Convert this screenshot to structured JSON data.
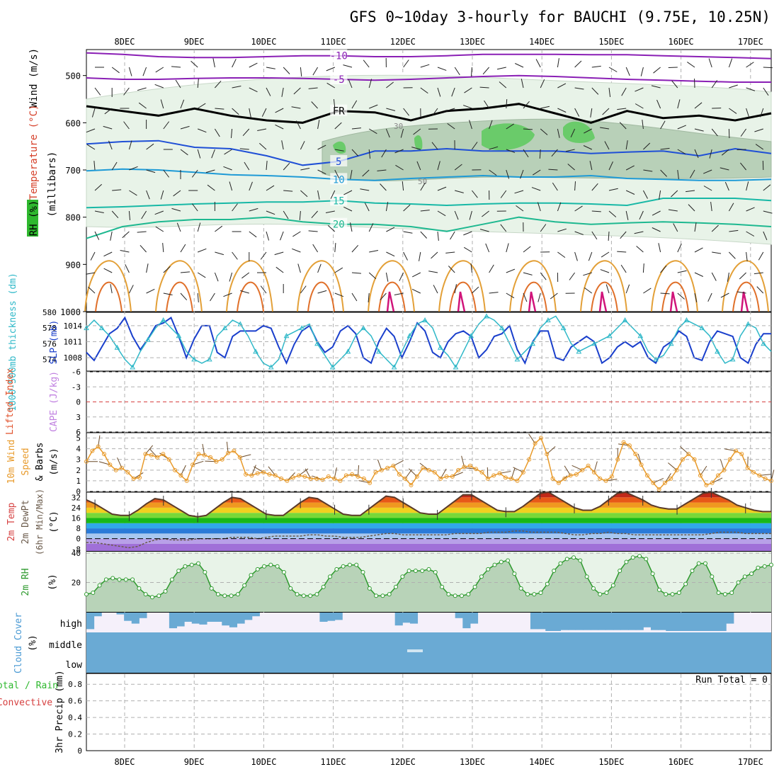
{
  "title": "GFS 0~10day 3-hourly for BAUCHI (9.75E, 10.25N)",
  "colors": {
    "purple": "#8a1fb5",
    "blue": "#1f4fd6",
    "cyan": "#1e9ad6",
    "teal": "#18b8a6",
    "green": "#1eb890",
    "orange": "#e3a038",
    "darkorange": "#e0702a",
    "magenta": "#d0147a",
    "rhLight": "#e8f3e8",
    "rhMid": "#b8d0b8",
    "rhDark": "#98b098",
    "rhBright": "#6acb6a",
    "slp": "#1a3fcc",
    "thick": "#2fb8c8",
    "wind10": "#e89a2a",
    "cloud": "#6aaad4",
    "cloudBg": "#f5f0fa",
    "grid": "#b0b0b0",
    "rh2m": "#2e9a2e",
    "rhFill": "#a8c8a8"
  },
  "chart_data": [
    {
      "panel": "upper_air",
      "type": "contour",
      "ylabel_parts": [
        "Wind (m/s)",
        "Temperature (°C)",
        "RH (%)",
        "(millibars)"
      ],
      "yticks": [
        500,
        600,
        700,
        800,
        900,
        1000
      ],
      "ylim": [
        445,
        1000
      ],
      "x_ticks": [
        "8DEC",
        "9DEC",
        "10DEC",
        "11DEC",
        "12DEC",
        "13DEC",
        "14DEC",
        "15DEC",
        "16DEC",
        "17DEC"
      ],
      "isotherm_labels": [
        "-10",
        "-5",
        "FR",
        "5",
        "10",
        "15",
        "20"
      ],
      "rh_labels": [
        "30",
        "50"
      ],
      "isotherms": [
        {
          "label": "-10",
          "color": "purple",
          "levels": [
            452,
            455,
            460,
            462,
            462,
            460,
            458,
            458,
            460,
            460,
            458,
            455,
            455,
            455,
            456,
            456,
            458,
            460,
            462,
            464
          ]
        },
        {
          "label": "-5",
          "color": "purple",
          "levels": [
            505,
            508,
            508,
            506,
            505,
            505,
            506,
            508,
            510,
            508,
            505,
            502,
            500,
            502,
            505,
            508,
            510,
            512,
            514,
            514
          ]
        },
        {
          "label": "FR",
          "color": "black",
          "levels": [
            565,
            575,
            585,
            570,
            585,
            595,
            600,
            575,
            578,
            595,
            575,
            570,
            560,
            580,
            600,
            575,
            590,
            585,
            595,
            580
          ]
        },
        {
          "label": "5",
          "color": "blue",
          "levels": [
            645,
            640,
            638,
            652,
            655,
            670,
            690,
            682,
            660,
            660,
            655,
            660,
            660,
            660,
            665,
            662,
            660,
            670,
            655,
            665
          ]
        },
        {
          "label": "10",
          "color": "cyan",
          "levels": [
            702,
            698,
            700,
            705,
            710,
            712,
            715,
            720,
            722,
            718,
            715,
            712,
            715,
            715,
            712,
            718,
            720,
            722,
            722,
            720
          ]
        },
        {
          "label": "15",
          "color": "teal",
          "levels": [
            780,
            778,
            775,
            772,
            770,
            768,
            768,
            765,
            770,
            772,
            775,
            772,
            770,
            770,
            772,
            775,
            760,
            760,
            760,
            765
          ]
        },
        {
          "label": "20",
          "color": "green",
          "levels": [
            845,
            820,
            810,
            805,
            805,
            800,
            810,
            815,
            815,
            820,
            830,
            815,
            800,
            810,
            815,
            812,
            810,
            812,
            815,
            820
          ]
        }
      ]
    },
    {
      "panel": "slp_thickness",
      "type": "line",
      "left_label": "1000-500mb thickness (dm)",
      "right_label": "SLP (mb)",
      "left_ticks": [
        574,
        576,
        578,
        580
      ],
      "right_ticks": [
        1008,
        1011,
        1014
      ],
      "ylim_left": [
        572.5,
        580
      ],
      "ylim_right": [
        1005.5,
        1016.5
      ],
      "slp": [
        1009,
        1007.5,
        1010,
        1012.5,
        1013.5,
        1015.5,
        1012,
        1009.5,
        1011.5,
        1014,
        1014.5,
        1015.5,
        1012,
        1008,
        1011.5,
        1014,
        1014,
        1009,
        1008,
        1012,
        1013,
        1013,
        1013,
        1014,
        1013.5,
        1010,
        1007,
        1010.5,
        1013,
        1014,
        1011,
        1009,
        1010,
        1013,
        1014,
        1012.5,
        1008,
        1007,
        1011,
        1013.5,
        1012,
        1008,
        1011,
        1014.5,
        1013,
        1009,
        1008,
        1011,
        1012.5,
        1013,
        1012,
        1008,
        1009.5,
        1012,
        1012.5,
        1014,
        1009.5,
        1007,
        1011,
        1013,
        1013,
        1008,
        1007.5,
        1010,
        1011,
        1012,
        1011,
        1007,
        1008,
        1010,
        1011,
        1010,
        1011,
        1008,
        1007,
        1010,
        1011,
        1013,
        1012,
        1008,
        1007.5,
        1011,
        1013,
        1012.5,
        1012,
        1008,
        1007,
        1010.5,
        1012.5,
        1012.5
      ],
      "thickness": [
        578,
        579,
        578,
        577,
        575.5,
        574,
        573,
        575,
        576.5,
        578,
        579,
        578,
        577,
        575,
        574,
        573.5,
        574,
        577,
        578,
        579,
        578.5,
        577,
        575,
        573.5,
        573,
        574,
        577,
        577.5,
        578,
        578.5,
        576,
        574.5,
        573,
        574,
        575,
        577,
        578,
        577,
        575,
        574,
        573,
        575,
        577,
        578.5,
        579,
        578,
        575.5,
        574.5,
        573,
        575,
        577,
        578.5,
        579.5,
        579,
        578,
        576,
        574,
        575,
        576,
        578,
        579,
        579.5,
        578,
        576,
        575,
        575.5,
        576,
        576.5,
        577,
        578,
        579,
        578,
        577,
        575,
        574,
        574.5,
        576,
        578,
        579,
        578.5,
        578,
        577,
        575,
        573.5,
        574,
        577,
        578.5,
        578,
        576,
        575
      ]
    },
    {
      "panel": "lifted_index_cape",
      "type": "line",
      "left_label": "Lifted Index",
      "right_label": "CAPE (J/kg)",
      "ticks": [
        "-6",
        "-3",
        "0",
        "3",
        "6"
      ],
      "ylim": [
        -6,
        6
      ]
    },
    {
      "panel": "wind10m",
      "type": "line",
      "ylabel_parts": [
        "10m Wind",
        "Speed",
        "& Barbs",
        "(m/s)"
      ],
      "yticks": [
        0,
        1,
        2,
        3,
        4,
        5
      ],
      "ylim": [
        0,
        5.5
      ],
      "speed": [
        2.8,
        3.8,
        4.2,
        3.5,
        2.5,
        2.0,
        2.2,
        1.8,
        1.2,
        1.3,
        3.5,
        3.4,
        3.2,
        3.5,
        3.0,
        2.0,
        1.5,
        1.0,
        2.5,
        3.5,
        3.4,
        3.2,
        2.8,
        3.0,
        3.6,
        3.8,
        3.2,
        1.6,
        1.5,
        1.7,
        1.8,
        1.6,
        1.5,
        1.2,
        1.0,
        1.3,
        1.5,
        1.4,
        1.2,
        1.2,
        1.1,
        1.4,
        1.2,
        1.0,
        1.5,
        1.6,
        1.4,
        1.2,
        0.8,
        1.8,
        2.0,
        2.2,
        2.4,
        1.6,
        1.2,
        0.6,
        1.4,
        2.2,
        2.0,
        1.8,
        1.2,
        1.4,
        1.4,
        2.0,
        2.3,
        2.4,
        2.1,
        1.8,
        1.2,
        1.5,
        1.7,
        1.3,
        1.2,
        1.0,
        1.8,
        3.0,
        4.5,
        5.0,
        3.5,
        1.2,
        0.8,
        1.2,
        1.5,
        1.6,
        2.0,
        2.4,
        1.8,
        1.2,
        1.0,
        1.4,
        3.0,
        4.6,
        4.3,
        3.5,
        2.5,
        1.5,
        0.8,
        0.2,
        0.8,
        1.2,
        2.0,
        3.0,
        3.5,
        3.0,
        1.5,
        0.6,
        0.8,
        1.5,
        2.0,
        3.0,
        3.8,
        3.5,
        2.2,
        1.8,
        1.5,
        1.2,
        1.0
      ]
    },
    {
      "panel": "temp2m",
      "type": "area",
      "ylabel_parts": [
        "2m Temp",
        "2m DewPt",
        "(6hr Min/Max)",
        "(°C)"
      ],
      "yticks": [
        -8,
        0,
        8,
        16,
        24,
        32
      ],
      "ylim": [
        -9.5,
        36
      ],
      "temp": [
        30,
        27,
        23,
        19,
        18,
        18,
        22,
        27,
        31,
        30,
        26,
        22,
        18,
        17,
        18,
        23,
        28,
        32,
        31,
        27,
        23,
        19,
        18,
        18,
        23,
        28,
        32,
        31,
        27,
        23,
        19,
        18,
        18,
        23,
        28,
        33,
        32,
        28,
        24,
        20,
        19,
        19,
        24,
        29,
        34,
        34,
        30,
        26,
        22,
        21,
        21,
        25,
        30,
        35,
        36,
        32,
        28,
        24,
        22,
        22,
        25,
        30,
        35,
        36,
        33,
        30,
        26,
        24,
        23,
        23,
        27,
        31,
        35,
        36,
        33,
        30,
        26,
        24,
        22,
        21,
        21
      ],
      "dewpt": [
        -3,
        -3,
        -4,
        -5,
        -6,
        -7,
        -6,
        -3,
        -1,
        0,
        -1,
        -1,
        -1,
        0,
        0,
        0,
        0,
        1,
        1,
        1,
        0,
        1,
        2,
        2,
        2,
        2,
        3,
        3,
        2,
        2,
        1,
        1,
        1,
        2,
        3,
        4,
        4,
        3,
        3,
        3,
        3,
        3,
        3,
        4,
        4,
        4,
        4,
        5,
        5,
        5,
        6,
        6,
        5,
        5,
        5,
        5,
        4,
        3,
        3,
        4,
        4,
        5,
        4,
        4,
        3,
        3,
        3,
        3,
        3,
        3,
        3,
        3,
        3,
        4,
        5,
        5,
        5,
        4,
        4,
        4,
        4
      ]
    },
    {
      "panel": "rh2m",
      "type": "line",
      "ylabel_parts": [
        "2m RH",
        "(%)"
      ],
      "yticks": [
        20,
        40
      ],
      "ylim": [
        0,
        41
      ],
      "rh": [
        12,
        13,
        18,
        22,
        23,
        22,
        22,
        22,
        16,
        12,
        10,
        11,
        14,
        22,
        28,
        31,
        32,
        33,
        27,
        16,
        12,
        11,
        11,
        12,
        18,
        25,
        29,
        31,
        32,
        31,
        27,
        16,
        12,
        11,
        11,
        12,
        17,
        24,
        29,
        31,
        32,
        32,
        27,
        16,
        11,
        11,
        12,
        17,
        24,
        28,
        28,
        28,
        29,
        27,
        17,
        12,
        11,
        11,
        12,
        17,
        24,
        29,
        32,
        34,
        35,
        26,
        16,
        12,
        12,
        13,
        19,
        28,
        33,
        36,
        37,
        35,
        24,
        16,
        12,
        13,
        18,
        28,
        34,
        37,
        38,
        36,
        26,
        15,
        12,
        12,
        13,
        19,
        28,
        33,
        33,
        24,
        13,
        12,
        13,
        20,
        24,
        26,
        30,
        31,
        32
      ]
    },
    {
      "panel": "cloud",
      "type": "area",
      "ylabel_parts": [
        "Cloud Cover",
        "(%)"
      ],
      "labels": [
        "high",
        "middle",
        "low"
      ],
      "high": [
        90,
        20,
        0,
        0,
        10,
        45,
        60,
        30,
        0,
        0,
        0,
        85,
        75,
        50,
        60,
        65,
        50,
        50,
        70,
        80,
        60,
        40,
        20,
        0,
        0,
        0,
        0,
        0,
        0,
        0,
        0,
        50,
        45,
        40,
        0,
        0,
        0,
        0,
        0,
        0,
        0,
        70,
        55,
        60,
        0,
        0,
        0,
        0,
        0,
        30,
        85,
        60,
        0,
        0,
        0,
        0,
        0,
        0,
        0,
        90,
        90,
        100,
        100,
        95,
        95,
        95,
        95,
        95,
        95,
        95,
        95,
        95,
        95,
        95,
        80,
        95,
        95,
        100,
        100,
        100,
        100,
        100,
        100,
        100,
        100,
        60,
        0,
        0,
        0,
        0,
        0
      ]
    },
    {
      "panel": "precip",
      "type": "bar",
      "ylabel_parts": [
        "3hr Precip (mm)",
        "Total / Rain",
        "Convective"
      ],
      "yticks": [
        "0",
        "0.2",
        "0.4",
        "0.6",
        "0.8"
      ],
      "ylim": [
        0,
        0.93
      ],
      "annotation": "Run Total = 0"
    }
  ]
}
